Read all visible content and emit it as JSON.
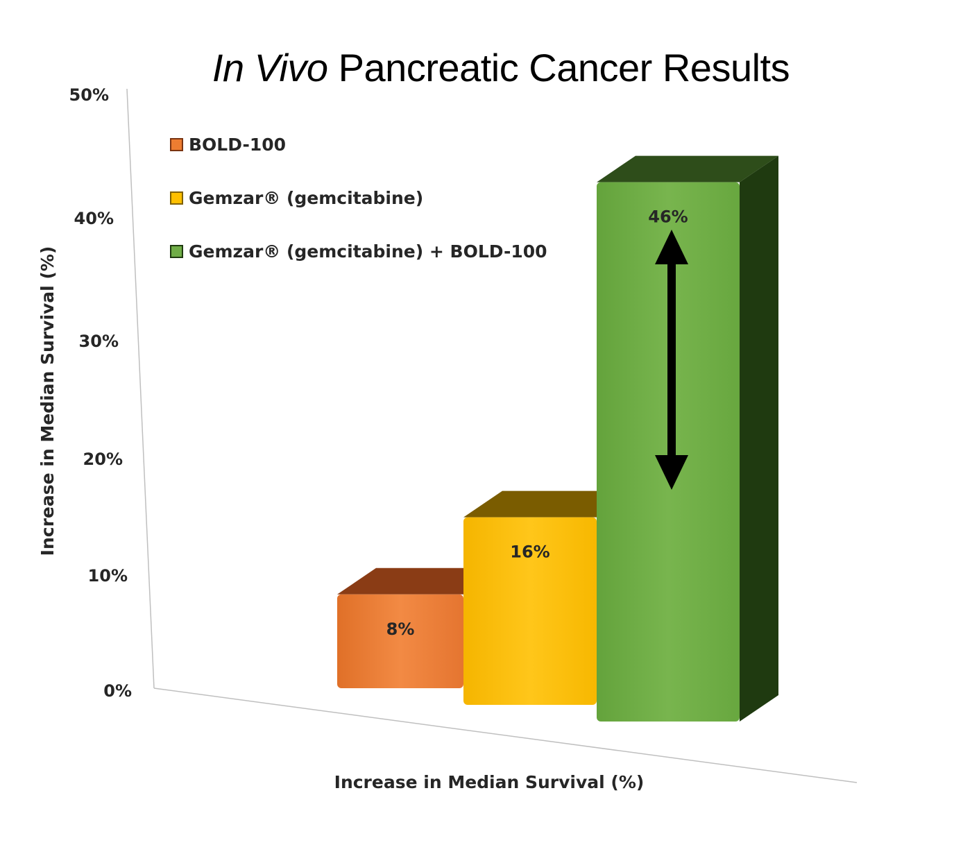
{
  "chart_data": {
    "type": "bar",
    "title": {
      "italic_part": "In Vivo",
      "rest": " Pancreatic Cancer Results"
    },
    "xlabel": "Increase in Median Survival (%)",
    "ylabel": "Increase in Median Survival (%)",
    "ylim": [
      0,
      50
    ],
    "yticks": [
      "0%",
      "10%",
      "20%",
      "30%",
      "40%",
      "50%"
    ],
    "grid": false,
    "legend_position": "top-left",
    "series": [
      {
        "name": "BOLD-100",
        "value": 8,
        "label": "8%",
        "color": "#ED7D31",
        "side_color": "#7A3411",
        "top_color": "#8A3C15"
      },
      {
        "name": "Gemzar® (gemcitabine)",
        "value": 16,
        "label": "16%",
        "color": "#FFC000",
        "side_color": "#7F6000",
        "top_color": "#7A5C00"
      },
      {
        "name": "Gemzar® (gemcitabine) + BOLD-100",
        "value": 46,
        "label": "46%",
        "color": "#70AD47",
        "side_color": "#1F3A10",
        "top_color": "#2E4D1A"
      }
    ],
    "annotation": "double-headed arrow"
  }
}
